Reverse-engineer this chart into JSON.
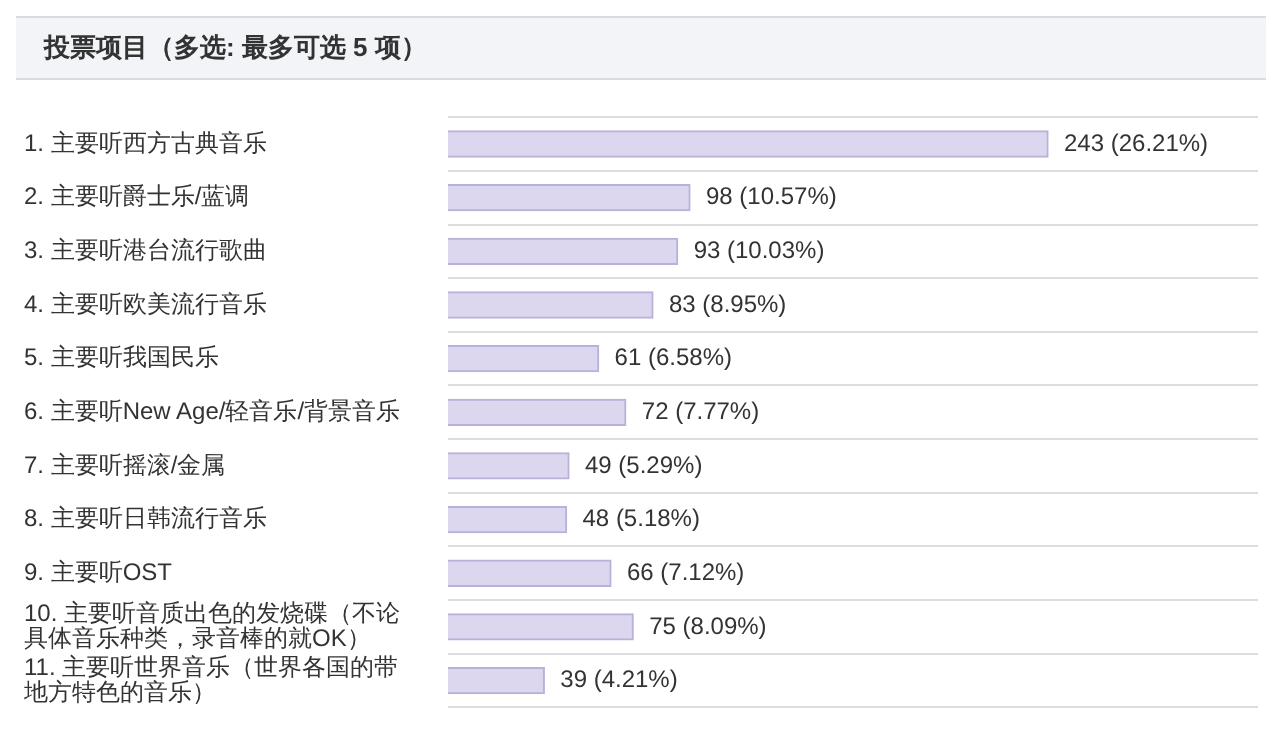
{
  "chart_data": {
    "type": "bar",
    "orientation": "horizontal",
    "title": "投票项目（多选: 最多可选 5 项）",
    "categories": [
      "1. 主要听西方古典音乐",
      "2. 主要听爵士乐/蓝调",
      "3. 主要听港台流行歌曲",
      "4. 主要听欧美流行音乐",
      "5. 主要听我国民乐",
      "6. 主要听New Age/轻音乐/背景音乐",
      "7. 主要听摇滚/金属",
      "8. 主要听日韩流行音乐",
      "9. 主要听OST",
      "10. 主要听音质出色的发烧碟（不论具体音乐种类，录音棒的就OK）",
      "11. 主要听世界音乐（世界各国的带地方特色的音乐）"
    ],
    "values": [
      243,
      98,
      93,
      83,
      61,
      72,
      49,
      48,
      66,
      75,
      39
    ],
    "value_labels": [
      "243 (26.21%)",
      "98 (10.57%)",
      "93 (10.03%)",
      "83 (8.95%)",
      "61 (6.58%)",
      "72 (7.77%)",
      "49 (5.29%)",
      "48 (5.18%)",
      "66 (7.12%)",
      "75 (8.09%)",
      "39 (4.21%)"
    ],
    "color": "#dcd7ef",
    "grid": "y"
  }
}
